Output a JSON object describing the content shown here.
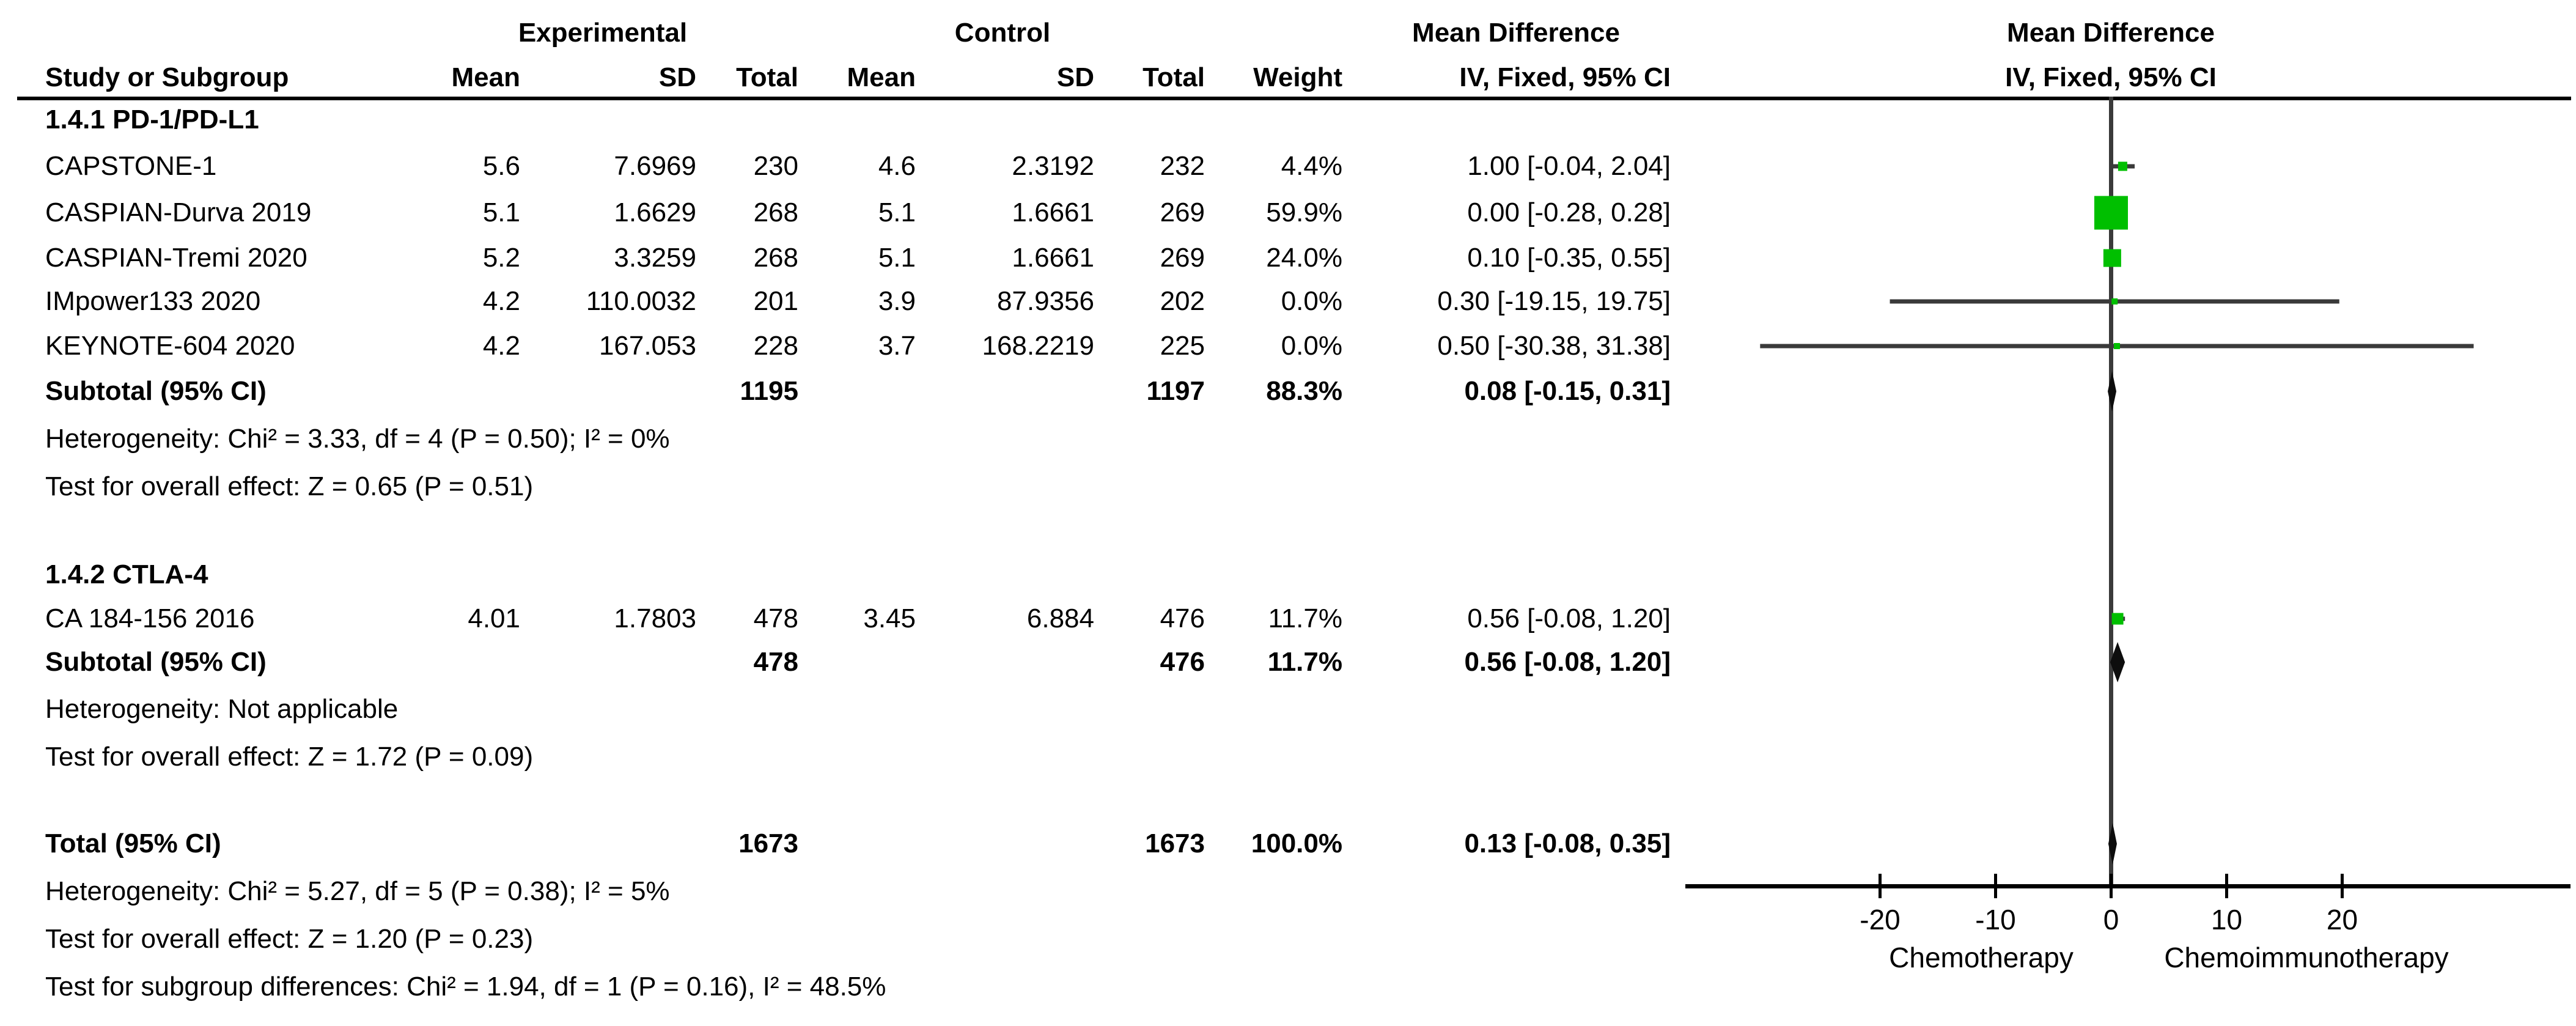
{
  "header": {
    "group_experimental": "Experimental",
    "group_control": "Control",
    "group_md_text": "Mean Difference",
    "group_md_plot": "Mean Difference",
    "col_study": "Study or Subgroup",
    "col_mean_exp": "Mean",
    "col_sd_exp": "SD",
    "col_total_exp": "Total",
    "col_mean_ctl": "Mean",
    "col_sd_ctl": "SD",
    "col_total_ctl": "Total",
    "col_weight": "Weight",
    "col_ci_text": "IV, Fixed, 95% CI",
    "col_ci_plot": "IV, Fixed, 95% CI"
  },
  "colors": {
    "square_green": "#00bf00",
    "ci_line": "#3a3a3a",
    "diamond": "#0d0d0d",
    "zero_line": "#3a3a3a",
    "axis": "#000000",
    "text": "#000000"
  },
  "chart_data": {
    "type": "forest",
    "effect_measure": "IV, Fixed, 95% CI",
    "x_axis": {
      "ticks": [
        -20,
        -10,
        0,
        10,
        20
      ],
      "label_left": "Chemotherapy",
      "label_right": "Chemoimmunotherapy"
    },
    "sections": [
      {
        "title": "1.4.1 PD-1/PD-L1",
        "studies": [
          {
            "name": "CAPSTONE-1",
            "exp_mean": "5.6",
            "exp_sd": "7.6969",
            "exp_total": "230",
            "ctl_mean": "4.6",
            "ctl_sd": "2.3192",
            "ctl_total": "232",
            "weight": "4.4%",
            "ci_text": "1.00 [-0.04, 2.04]",
            "md": 1.0,
            "lo": -0.04,
            "hi": 2.04
          },
          {
            "name": "CASPIAN-Durva 2019",
            "exp_mean": "5.1",
            "exp_sd": "1.6629",
            "exp_total": "268",
            "ctl_mean": "5.1",
            "ctl_sd": "1.6661",
            "ctl_total": "269",
            "weight": "59.9%",
            "ci_text": "0.00 [-0.28, 0.28]",
            "md": 0.0,
            "lo": -0.28,
            "hi": 0.28
          },
          {
            "name": "CASPIAN-Tremi 2020",
            "exp_mean": "5.2",
            "exp_sd": "3.3259",
            "exp_total": "268",
            "ctl_mean": "5.1",
            "ctl_sd": "1.6661",
            "ctl_total": "269",
            "weight": "24.0%",
            "ci_text": "0.10 [-0.35, 0.55]",
            "md": 0.1,
            "lo": -0.35,
            "hi": 0.55
          },
          {
            "name": "IMpower133 2020",
            "exp_mean": "4.2",
            "exp_sd": "110.0032",
            "exp_total": "201",
            "ctl_mean": "3.9",
            "ctl_sd": "87.9356",
            "ctl_total": "202",
            "weight": "0.0%",
            "ci_text": "0.30 [-19.15, 19.75]",
            "md": 0.3,
            "lo": -19.15,
            "hi": 19.75
          },
          {
            "name": "KEYNOTE-604 2020",
            "exp_mean": "4.2",
            "exp_sd": "167.053",
            "exp_total": "228",
            "ctl_mean": "3.7",
            "ctl_sd": "168.2219",
            "ctl_total": "225",
            "weight": "0.0%",
            "ci_text": "0.50 [-30.38, 31.38]",
            "md": 0.5,
            "lo": -30.38,
            "hi": 31.38
          }
        ],
        "subtotal": {
          "label": "Subtotal (95% CI)",
          "exp_total": "1195",
          "ctl_total": "1197",
          "weight": "88.3%",
          "ci_text": "0.08 [-0.15, 0.31]",
          "md": 0.08,
          "lo": -0.15,
          "hi": 0.31
        },
        "heterogeneity": "Heterogeneity: Chi² = 3.33, df = 4 (P = 0.50); I² = 0%",
        "overall_effect": "Test for overall effect: Z = 0.65 (P = 0.51)"
      },
      {
        "title": "1.4.2 CTLA-4",
        "studies": [
          {
            "name": "CA 184-156 2016",
            "exp_mean": "4.01",
            "exp_sd": "1.7803",
            "exp_total": "478",
            "ctl_mean": "3.45",
            "ctl_sd": "6.884",
            "ctl_total": "476",
            "weight": "11.7%",
            "ci_text": "0.56 [-0.08, 1.20]",
            "md": 0.56,
            "lo": -0.08,
            "hi": 1.2
          }
        ],
        "subtotal": {
          "label": "Subtotal (95% CI)",
          "exp_total": "478",
          "ctl_total": "476",
          "weight": "11.7%",
          "ci_text": "0.56 [-0.08, 1.20]",
          "md": 0.56,
          "lo": -0.08,
          "hi": 1.2
        },
        "heterogeneity": "Heterogeneity: Not applicable",
        "overall_effect": "Test for overall effect: Z = 1.72 (P = 0.09)"
      }
    ],
    "total": {
      "label": "Total (95% CI)",
      "exp_total": "1673",
      "ctl_total": "1673",
      "weight": "100.0%",
      "ci_text": "0.13 [-0.08, 0.35]",
      "md": 0.13,
      "lo": -0.08,
      "hi": 0.35
    },
    "footer": [
      "Heterogeneity: Chi² = 5.27, df = 5 (P = 0.38); I² = 5%",
      "Test for overall effect: Z = 1.20 (P = 0.23)",
      "Test for subgroup differences: Chi² = 1.94, df = 1 (P = 0.16), I² = 48.5%"
    ]
  }
}
